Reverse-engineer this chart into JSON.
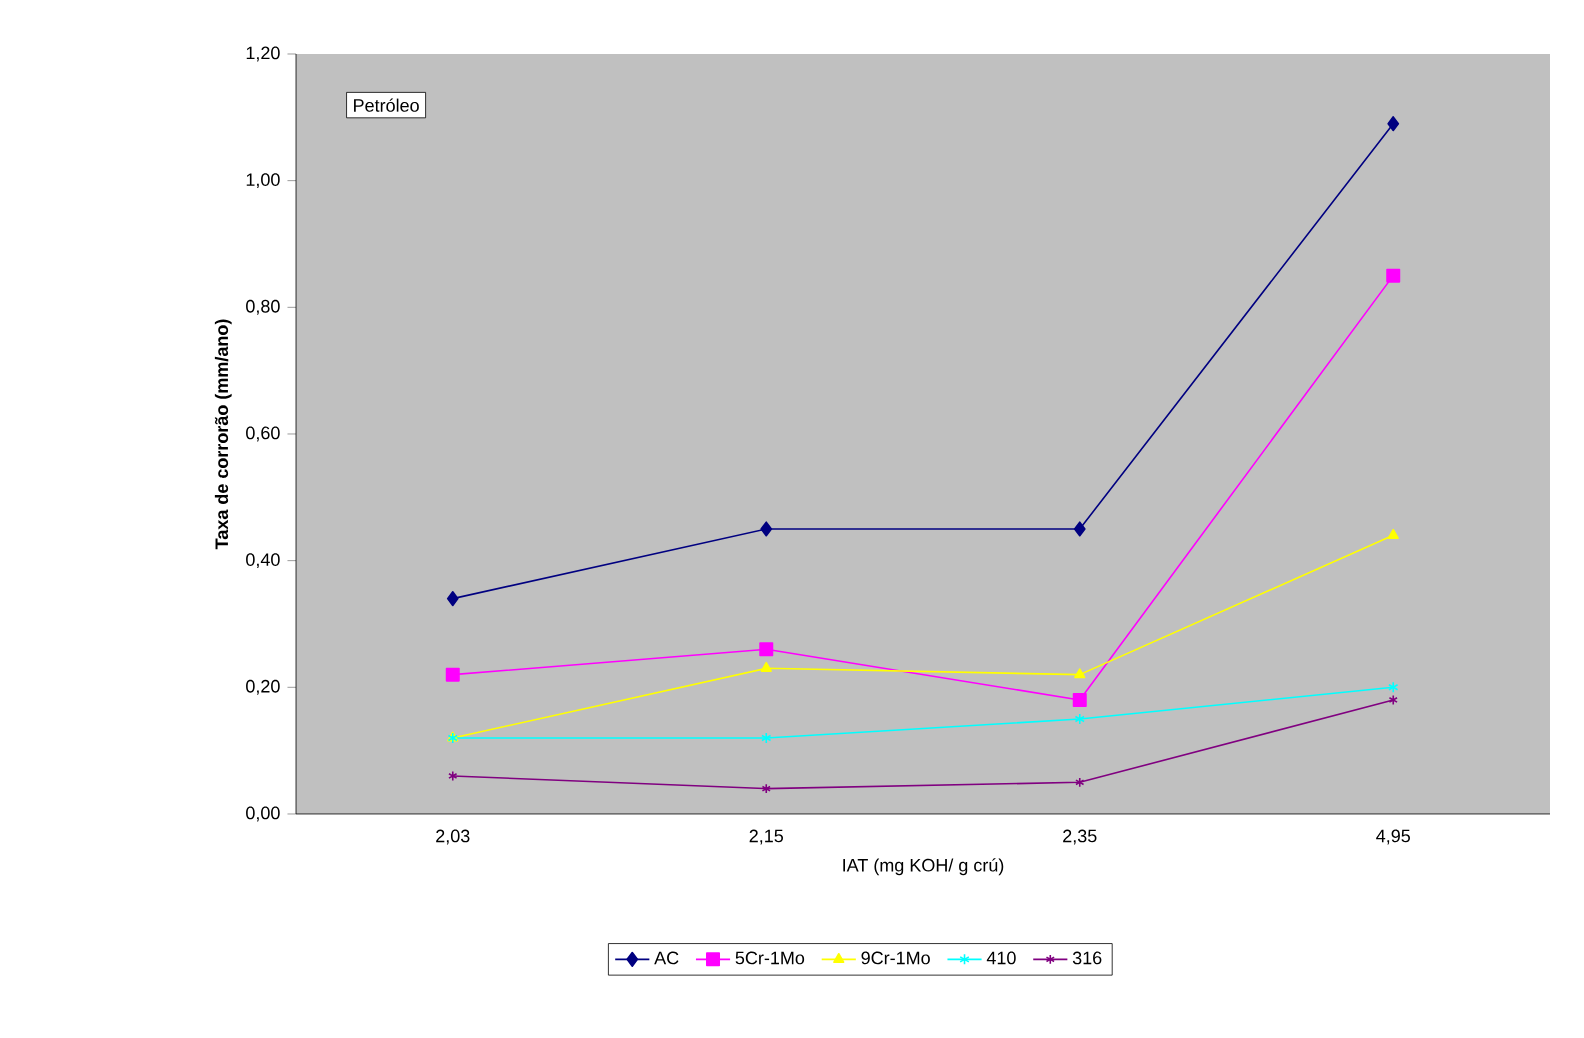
{
  "chart_data": {
    "type": "line",
    "xlabel": "IAT (mg KOH/ g crú)",
    "ylabel": "Taxa de corrorão (mm/ano)",
    "categories": [
      "2,03",
      "2,15",
      "2,35",
      "4,95"
    ],
    "series": [
      {
        "name": "AC",
        "color": "#000080",
        "marker": "diamond",
        "values": [
          0.34,
          0.45,
          0.45,
          1.09
        ]
      },
      {
        "name": "5Cr-1Mo",
        "color": "#ff00ff",
        "marker": "square",
        "values": [
          0.22,
          0.26,
          0.18,
          0.85
        ]
      },
      {
        "name": "9Cr-1Mo",
        "color": "#ffff00",
        "marker": "triangle",
        "values": [
          0.12,
          0.23,
          0.22,
          0.44
        ]
      },
      {
        "name": "410",
        "color": "#00ffff",
        "marker": "cross",
        "values": [
          0.12,
          0.12,
          0.15,
          0.2
        ]
      },
      {
        "name": "316",
        "color": "#800080",
        "marker": "cross",
        "values": [
          0.06,
          0.04,
          0.05,
          0.18
        ]
      }
    ],
    "ylim": [
      0,
      1.2
    ],
    "yticks": [
      {
        "value": 0,
        "label": "0,00"
      },
      {
        "value": 0.2,
        "label": "0,20"
      },
      {
        "value": 0.4,
        "label": "0,40"
      },
      {
        "value": 0.6,
        "label": "0,60"
      },
      {
        "value": 0.8,
        "label": "0,80"
      },
      {
        "value": 1.0,
        "label": "1,00"
      },
      {
        "value": 1.2,
        "label": "1,20"
      }
    ],
    "annotations": [
      "Petróleo"
    ],
    "grid": false,
    "legend": "bottom",
    "line_style": "solid"
  }
}
